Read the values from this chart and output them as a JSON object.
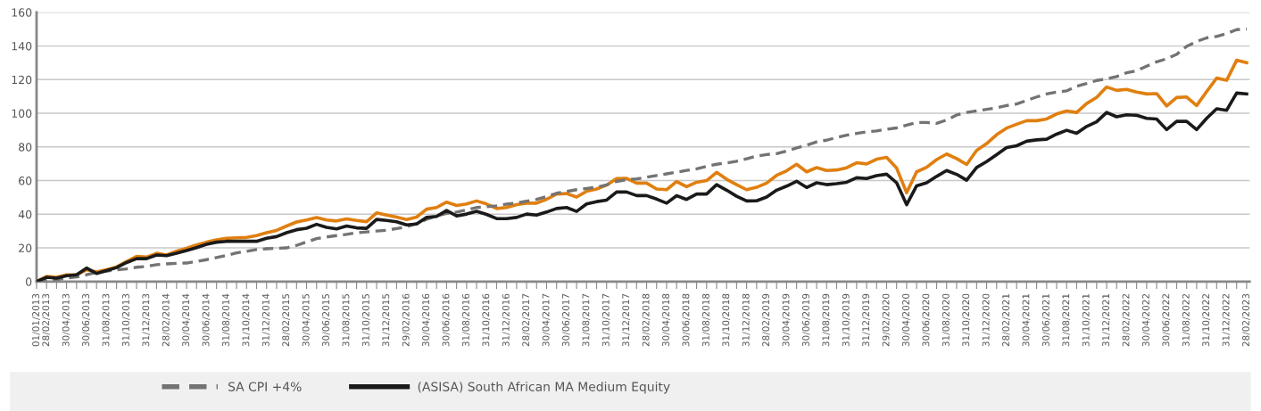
{
  "chart_data": {
    "type": "line",
    "ylim": [
      0,
      160
    ],
    "yticks": [
      0,
      20,
      40,
      60,
      80,
      100,
      120,
      140,
      160
    ],
    "grid": "y",
    "legend": "bottom",
    "marker": "none",
    "categories": [
      "01/01/2013",
      "28/02/2013",
      null,
      "30/04/2013",
      null,
      "30/06/2013",
      null,
      "31/08/2013",
      null,
      "31/10/2013",
      null,
      "31/12/2013",
      null,
      "28/02/2014",
      null,
      "30/04/2014",
      null,
      "30/06/2014",
      null,
      "31/08/2014",
      null,
      "31/10/2014",
      null,
      "31/12/2014",
      null,
      "28/02/2015",
      null,
      "30/04/2015",
      null,
      "30/06/2015",
      null,
      "31/08/2015",
      null,
      "31/10/2015",
      null,
      "31/12/2015",
      null,
      "29/02/2016",
      null,
      "30/04/2016",
      null,
      "30/06/2016",
      null,
      "31/08/2016",
      null,
      "31/10/2016",
      null,
      "31/12/2016",
      null,
      "28/02/2017",
      null,
      "30/04/2017",
      null,
      "30/06/2017",
      null,
      "31/08/2017",
      null,
      "31/10/2017",
      null,
      "31/12/2017",
      null,
      "28/02/2018",
      null,
      "30/04/2018",
      null,
      "30/06/2018",
      null,
      "31/08/2018",
      null,
      "31/10/2018",
      null,
      "31/12/2018",
      null,
      "28/02/2019",
      null,
      "30/04/2019",
      null,
      "30/06/2019",
      null,
      "31/08/2019",
      null,
      "31/10/2019",
      null,
      "31/12/2019",
      null,
      "29/02/2020",
      null,
      "30/04/2020",
      null,
      "30/06/2020",
      null,
      "31/08/2020",
      null,
      "31/10/2020",
      null,
      "31/12/2020",
      null,
      "28/02/2021",
      null,
      "30/04/2021",
      null,
      "30/06/2021",
      null,
      "31/08/2021",
      null,
      "31/10/2021",
      null,
      "31/12/2021",
      null,
      "28/02/2022",
      null,
      "30/04/2022",
      null,
      "30/06/2022",
      null,
      "31/08/2022",
      null,
      "31/10/2022",
      null,
      "31/12/2022",
      null,
      "28/02/2023"
    ],
    "series": [
      {
        "color": "#e07f10",
        "line_style": "solid",
        "values": [
          0,
          3,
          2.5,
          4,
          4,
          7,
          5.7,
          7,
          8.7,
          11.9,
          14.9,
          14.5,
          16.8,
          15.8,
          18,
          19.8,
          21.8,
          23.4,
          24.8,
          25.7,
          26,
          26.2,
          27.3,
          29,
          30.4,
          33,
          35.4,
          36.6,
          38,
          36.6,
          36,
          37.2,
          36.3,
          35.6,
          40.8,
          39.5,
          38.3,
          36.9,
          38.3,
          43,
          44,
          47.2,
          45.2,
          46.1,
          47.9,
          46.1,
          43.4,
          44,
          45.7,
          46.6,
          46.6,
          48.9,
          52,
          52.3,
          50.2,
          53.7,
          55,
          57.3,
          61.2,
          61.3,
          58.5,
          58.5,
          55,
          54.6,
          59.4,
          56.4,
          59,
          60,
          64.9,
          60.8,
          57.6,
          54.6,
          56,
          58.5,
          63.1,
          65.8,
          69.7,
          65.2,
          67.7,
          66,
          66.3,
          67.6,
          70.6,
          69.9,
          72.7,
          73.8,
          67.4,
          52.8,
          65.2,
          67.9,
          72.5,
          75.8,
          73.1,
          69.6,
          77.9,
          82,
          87.3,
          91.2,
          93.5,
          95.6,
          95.6,
          96.6,
          99.6,
          101.4,
          100.5,
          105.8,
          109.4,
          115.6,
          113.6,
          114.2,
          112.6,
          111.5,
          111.7,
          104.4,
          109.4,
          109.7,
          104.6,
          112.9,
          120.9,
          119.6,
          131.5,
          130.1
        ]
      },
      {
        "name": "SA CPI +4%",
        "color": "#737373",
        "line_style": "dashed",
        "values": [
          0,
          0.8,
          1.2,
          2,
          2.7,
          4,
          5.5,
          6.2,
          6.9,
          7.5,
          8.5,
          9,
          10,
          10.5,
          10.8,
          11,
          11.9,
          13,
          14.3,
          15.5,
          17,
          18,
          19,
          19.5,
          19.8,
          20,
          21.5,
          23.5,
          25.5,
          26.5,
          27.3,
          28,
          29,
          29.5,
          30,
          30.5,
          31.5,
          32.5,
          34.5,
          37,
          39,
          40.5,
          41.3,
          42.5,
          44,
          44.5,
          45,
          46,
          46.6,
          47.8,
          48.8,
          50.5,
          52.5,
          53.5,
          54.6,
          55.3,
          56,
          57.5,
          59.5,
          60.5,
          61,
          62,
          63,
          64,
          65,
          66,
          67,
          68.5,
          69.7,
          70.5,
          71.5,
          73,
          74.5,
          75.5,
          76,
          77.5,
          79.4,
          81,
          83,
          84,
          85.6,
          87,
          88,
          89,
          89.5,
          90.5,
          91.3,
          93,
          94.5,
          94.5,
          94,
          96,
          99,
          100.5,
          101.4,
          102.3,
          103.2,
          104.6,
          105.5,
          107.6,
          109.7,
          111.5,
          112.6,
          113.3,
          116.1,
          117.7,
          119.5,
          120.4,
          121.8,
          124.1,
          125.3,
          128,
          130.6,
          132.4,
          135,
          139.8,
          142.7,
          144.8,
          145.7,
          147.4,
          149.7,
          150.1
        ]
      },
      {
        "name": "(ASISA) South African MA Medium Equity",
        "color": "#1a1a1a",
        "line_style": "solid",
        "values": [
          0,
          2.5,
          2,
          3.5,
          4,
          8,
          4.8,
          6.5,
          8.3,
          11.3,
          13.6,
          13.6,
          15.8,
          15.4,
          16.8,
          18.4,
          20.2,
          22.1,
          23.4,
          23.9,
          23.9,
          23.9,
          23.9,
          25.7,
          26.7,
          29,
          30.8,
          31.7,
          34,
          32.2,
          31.3,
          33,
          31.9,
          31.6,
          36.9,
          36.3,
          35.5,
          33.7,
          34.2,
          38.1,
          38.7,
          42.2,
          39,
          40.1,
          41.7,
          39.9,
          37.4,
          37.4,
          38.1,
          40.1,
          39.5,
          41.3,
          43.4,
          44,
          41.7,
          46.1,
          47.5,
          48.4,
          53.2,
          53.2,
          51.1,
          51.1,
          49,
          46.6,
          51,
          48.8,
          52,
          52,
          57.6,
          54.3,
          50.7,
          47.9,
          48,
          50.2,
          54.3,
          56.7,
          59.6,
          55.9,
          58.7,
          57.6,
          58.2,
          59,
          61.7,
          61.2,
          62.9,
          63.8,
          58.7,
          45.7,
          56.9,
          58.7,
          62.5,
          66,
          63.7,
          60.2,
          67.8,
          71.3,
          75.4,
          79.6,
          80.7,
          83.4,
          84.2,
          84.6,
          87.6,
          89.9,
          88.1,
          92.2,
          94.9,
          100.5,
          97.9,
          99.1,
          98.8,
          97,
          96.6,
          90.3,
          95.2,
          95.2,
          90.3,
          97,
          102.7,
          101.8,
          112,
          111.5
        ]
      }
    ]
  }
}
